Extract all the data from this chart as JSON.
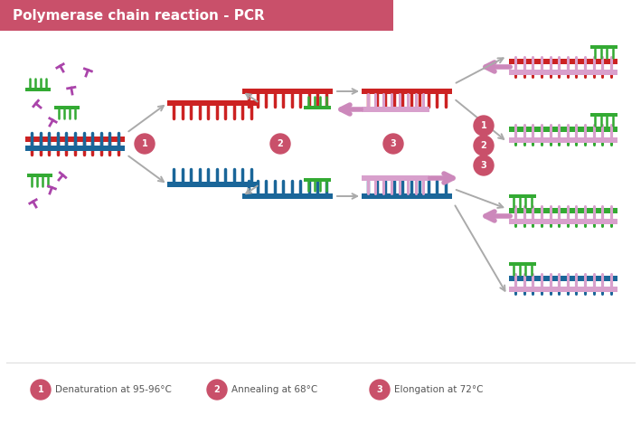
{
  "title": "Polymerase chain reaction - PCR",
  "title_bg": "#c9506a",
  "title_color": "#ffffff",
  "bg_color": "#ffffff",
  "legend": [
    {
      "num": "1",
      "text": "Denaturation at 95-96°C"
    },
    {
      "num": "2",
      "text": "Annealing at 68°C"
    },
    {
      "num": "3",
      "text": "Elongation at 72°C"
    }
  ],
  "circle_color": "#c9506a",
  "arrow_gray": "#aaaaaa",
  "arrow_pink": "#cc88bb",
  "red": "#cc2222",
  "blue": "#1a6699",
  "green": "#33aa33",
  "pink": "#d8a0cc",
  "purple_primer": "#aa44aa"
}
